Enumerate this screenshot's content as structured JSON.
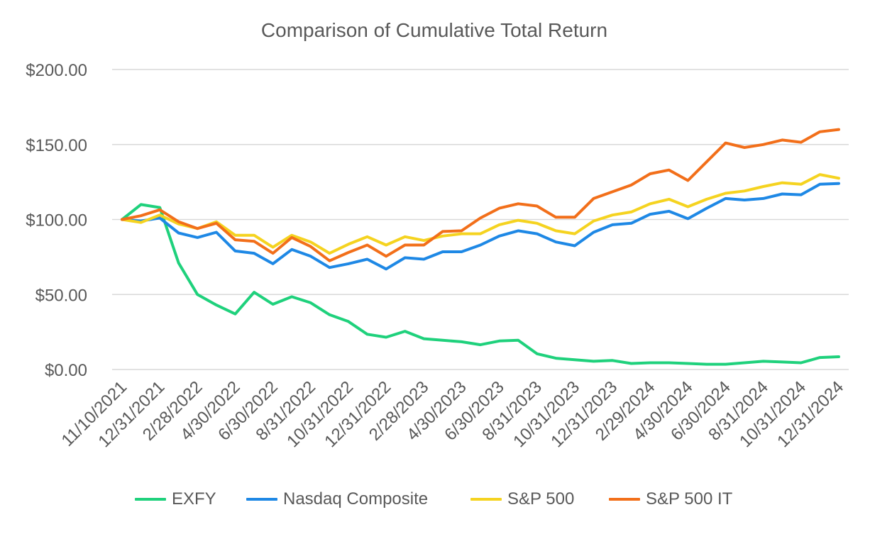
{
  "chart_data": {
    "type": "line",
    "title": "Comparison of Cumulative Total Return",
    "xlabel": "",
    "ylabel": "",
    "ylim": [
      0,
      200
    ],
    "y_ticks": [
      0,
      50,
      100,
      150,
      200
    ],
    "y_tick_labels": [
      "$0.00",
      "$50.00",
      "$100.00",
      "$150.00",
      "$200.00"
    ],
    "x_tick_labels": [
      "11/10/2021",
      "12/31/2021",
      "2/28/2022",
      "4/30/2022",
      "6/30/2022",
      "8/31/2022",
      "10/31/2022",
      "12/31/2022",
      "2/28/2023",
      "4/30/2023",
      "6/30/2023",
      "8/31/2023",
      "10/31/2023",
      "12/31/2023",
      "2/29/2024",
      "4/30/2024",
      "6/30/2024",
      "8/31/2024",
      "10/31/2024",
      "12/31/2024"
    ],
    "x_tick_every": 2,
    "grid": true,
    "legend_position": "bottom",
    "series": [
      {
        "name": "EXFY",
        "color": "#1fd17c",
        "values": [
          100,
          110,
          108,
          71,
          50,
          43,
          37,
          51.5,
          43.5,
          48.5,
          44.5,
          36.5,
          32,
          23.5,
          21.5,
          25.5,
          20.5,
          19.5,
          18.5,
          16.5,
          19,
          19.5,
          10.5,
          7.5,
          6.5,
          5.5,
          6,
          4,
          4.5,
          4.5,
          4,
          3.5,
          3.5,
          4.5,
          5.5,
          5,
          4.5,
          8,
          8.5
        ]
      },
      {
        "name": "Nasdaq Composite",
        "color": "#1e88e5",
        "values": [
          100,
          99,
          101,
          91,
          88,
          91.5,
          79,
          77.5,
          70.5,
          80,
          75.5,
          68,
          70.5,
          73.5,
          67,
          74.5,
          73.5,
          78.5,
          78.5,
          83,
          89,
          92.5,
          90.5,
          85,
          82.5,
          91.5,
          96.5,
          97.5,
          103.5,
          105.5,
          100.5,
          107.5,
          114,
          113,
          114,
          117,
          116.5,
          123.5,
          124
        ]
      },
      {
        "name": "S&P 500",
        "color": "#f5d320",
        "values": [
          100,
          98,
          103,
          97,
          94,
          98.5,
          89.5,
          89.5,
          81.5,
          89.5,
          85,
          77.5,
          83.5,
          88.5,
          83,
          88.5,
          86,
          89,
          90.5,
          90.5,
          96.5,
          99.5,
          97.5,
          92.5,
          90.5,
          99,
          103,
          105,
          110.5,
          113.5,
          108.5,
          113.5,
          117.5,
          119,
          122,
          124.5,
          123.5,
          130,
          127.5
        ]
      },
      {
        "name": "S&P 500 IT",
        "color": "#f26f1a",
        "values": [
          100,
          102.5,
          106.5,
          98.5,
          94,
          97.5,
          86.5,
          85.5,
          77.5,
          88,
          82,
          72.5,
          78,
          83,
          75.5,
          83,
          83,
          92,
          92.5,
          101,
          107.5,
          110.5,
          109,
          101.5,
          101.5,
          114,
          118.5,
          123,
          130.5,
          133,
          126,
          138.5,
          151,
          148,
          150,
          153,
          151.5,
          158.5,
          160
        ]
      }
    ]
  }
}
